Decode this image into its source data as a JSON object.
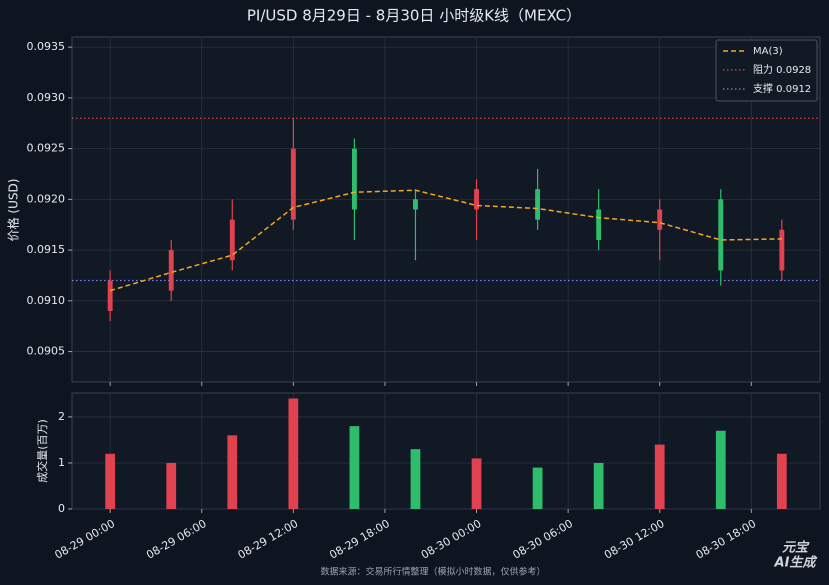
{
  "chart_data": [
    {
      "type": "candlestick",
      "title": "PI/USD  8月29日 - 8月30日  小时级K线（MEXC）",
      "ylabel": "价格 (USD)",
      "x": [
        0,
        4,
        8,
        12,
        16,
        20,
        24,
        28,
        32,
        36,
        40,
        44
      ],
      "xlim": [
        -2.5,
        46.5
      ],
      "open": [
        0.0909,
        0.0911,
        0.0914,
        0.0918,
        0.0925,
        0.092,
        0.0919,
        0.0921,
        0.0919,
        0.0917,
        0.092,
        0.0913
      ],
      "high": [
        0.0913,
        0.0916,
        0.092,
        0.0928,
        0.0926,
        0.0921,
        0.0922,
        0.0923,
        0.0921,
        0.092,
        0.0921,
        0.0918
      ],
      "low": [
        0.0908,
        0.091,
        0.0913,
        0.0917,
        0.0916,
        0.0914,
        0.0916,
        0.0917,
        0.0915,
        0.0914,
        0.09115,
        0.0912
      ],
      "close": [
        0.0912,
        0.0915,
        0.0918,
        0.0925,
        0.0919,
        0.0919,
        0.0921,
        0.0918,
        0.0916,
        0.0919,
        0.0913,
        0.0917
      ],
      "up_color": "#e0424f",
      "down_color": "#2ebd6b",
      "series": [
        {
          "name": "MA(3)",
          "color": "#f5a623",
          "values": [
            0.0911,
            0.09128,
            0.09145,
            0.09192,
            0.09207,
            0.09209,
            0.09194,
            0.09191,
            0.09182,
            0.09177,
            0.0916,
            0.09161
          ]
        }
      ],
      "hlines": [
        {
          "name": "阻力 0.0928",
          "value": 0.0928,
          "color": "#e0424f"
        },
        {
          "name": "支撑 0.0912",
          "value": 0.0912,
          "color": "#7b86e8"
        }
      ],
      "ylim": [
        0.0902,
        0.0936
      ],
      "yticks": [
        {
          "value": 0.0905,
          "label": "0.0905"
        },
        {
          "value": 0.091,
          "label": "0.0910"
        },
        {
          "value": 0.0915,
          "label": "0.0915"
        },
        {
          "value": 0.092,
          "label": "0.0920"
        },
        {
          "value": 0.0925,
          "label": "0.0925"
        },
        {
          "value": 0.093,
          "label": "0.0930"
        },
        {
          "value": 0.0935,
          "label": "0.0935"
        }
      ],
      "grid": true,
      "legend": "upper right"
    },
    {
      "type": "bar",
      "ylabel": "成交量(百万)",
      "x": [
        0,
        4,
        8,
        12,
        16,
        20,
        24,
        28,
        32,
        36,
        40,
        44
      ],
      "xlim": [
        -2.5,
        46.5
      ],
      "values": [
        1.2,
        1.0,
        1.6,
        2.4,
        1.8,
        1.3,
        1.1,
        0.9,
        1.0,
        1.4,
        1.7,
        1.2
      ],
      "ylim": [
        0,
        2.52
      ],
      "yticks": [
        0,
        1,
        2
      ],
      "xticks": [
        {
          "value": 0,
          "label": "08-29 00:00"
        },
        {
          "value": 6,
          "label": "08-29 06:00"
        },
        {
          "value": 12,
          "label": "08-29 12:00"
        },
        {
          "value": 18,
          "label": "08-29 18:00"
        },
        {
          "value": 24,
          "label": "08-30 00:00"
        },
        {
          "value": 30,
          "label": "08-30 06:00"
        },
        {
          "value": 36,
          "label": "08-30 12:00"
        },
        {
          "value": 42,
          "label": "08-30 18:00"
        }
      ],
      "grid": true
    }
  ],
  "footer": "数据来源：交易所行情整理（模拟小时数据，仅供参考）",
  "watermark": [
    "元宝",
    "AI生成"
  ]
}
